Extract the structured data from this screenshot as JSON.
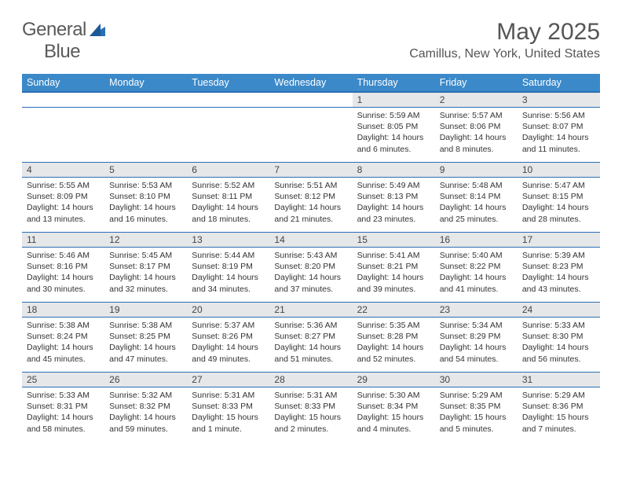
{
  "brand": {
    "part1": "General",
    "part2": "Blue"
  },
  "title": "May 2025",
  "location": "Camillus, New York, United States",
  "colors": {
    "header_bg": "#3b89c9",
    "header_border": "#2a6fb5",
    "daynum_bg": "#e6e7e8",
    "text": "#333",
    "title_text": "#555"
  },
  "weekdays": [
    "Sunday",
    "Monday",
    "Tuesday",
    "Wednesday",
    "Thursday",
    "Friday",
    "Saturday"
  ],
  "weeks": [
    [
      null,
      null,
      null,
      null,
      {
        "n": "1",
        "sr": "Sunrise: 5:59 AM",
        "ss": "Sunset: 8:05 PM",
        "d1": "Daylight: 14 hours",
        "d2": "and 6 minutes."
      },
      {
        "n": "2",
        "sr": "Sunrise: 5:57 AM",
        "ss": "Sunset: 8:06 PM",
        "d1": "Daylight: 14 hours",
        "d2": "and 8 minutes."
      },
      {
        "n": "3",
        "sr": "Sunrise: 5:56 AM",
        "ss": "Sunset: 8:07 PM",
        "d1": "Daylight: 14 hours",
        "d2": "and 11 minutes."
      }
    ],
    [
      {
        "n": "4",
        "sr": "Sunrise: 5:55 AM",
        "ss": "Sunset: 8:09 PM",
        "d1": "Daylight: 14 hours",
        "d2": "and 13 minutes."
      },
      {
        "n": "5",
        "sr": "Sunrise: 5:53 AM",
        "ss": "Sunset: 8:10 PM",
        "d1": "Daylight: 14 hours",
        "d2": "and 16 minutes."
      },
      {
        "n": "6",
        "sr": "Sunrise: 5:52 AM",
        "ss": "Sunset: 8:11 PM",
        "d1": "Daylight: 14 hours",
        "d2": "and 18 minutes."
      },
      {
        "n": "7",
        "sr": "Sunrise: 5:51 AM",
        "ss": "Sunset: 8:12 PM",
        "d1": "Daylight: 14 hours",
        "d2": "and 21 minutes."
      },
      {
        "n": "8",
        "sr": "Sunrise: 5:49 AM",
        "ss": "Sunset: 8:13 PM",
        "d1": "Daylight: 14 hours",
        "d2": "and 23 minutes."
      },
      {
        "n": "9",
        "sr": "Sunrise: 5:48 AM",
        "ss": "Sunset: 8:14 PM",
        "d1": "Daylight: 14 hours",
        "d2": "and 25 minutes."
      },
      {
        "n": "10",
        "sr": "Sunrise: 5:47 AM",
        "ss": "Sunset: 8:15 PM",
        "d1": "Daylight: 14 hours",
        "d2": "and 28 minutes."
      }
    ],
    [
      {
        "n": "11",
        "sr": "Sunrise: 5:46 AM",
        "ss": "Sunset: 8:16 PM",
        "d1": "Daylight: 14 hours",
        "d2": "and 30 minutes."
      },
      {
        "n": "12",
        "sr": "Sunrise: 5:45 AM",
        "ss": "Sunset: 8:17 PM",
        "d1": "Daylight: 14 hours",
        "d2": "and 32 minutes."
      },
      {
        "n": "13",
        "sr": "Sunrise: 5:44 AM",
        "ss": "Sunset: 8:19 PM",
        "d1": "Daylight: 14 hours",
        "d2": "and 34 minutes."
      },
      {
        "n": "14",
        "sr": "Sunrise: 5:43 AM",
        "ss": "Sunset: 8:20 PM",
        "d1": "Daylight: 14 hours",
        "d2": "and 37 minutes."
      },
      {
        "n": "15",
        "sr": "Sunrise: 5:41 AM",
        "ss": "Sunset: 8:21 PM",
        "d1": "Daylight: 14 hours",
        "d2": "and 39 minutes."
      },
      {
        "n": "16",
        "sr": "Sunrise: 5:40 AM",
        "ss": "Sunset: 8:22 PM",
        "d1": "Daylight: 14 hours",
        "d2": "and 41 minutes."
      },
      {
        "n": "17",
        "sr": "Sunrise: 5:39 AM",
        "ss": "Sunset: 8:23 PM",
        "d1": "Daylight: 14 hours",
        "d2": "and 43 minutes."
      }
    ],
    [
      {
        "n": "18",
        "sr": "Sunrise: 5:38 AM",
        "ss": "Sunset: 8:24 PM",
        "d1": "Daylight: 14 hours",
        "d2": "and 45 minutes."
      },
      {
        "n": "19",
        "sr": "Sunrise: 5:38 AM",
        "ss": "Sunset: 8:25 PM",
        "d1": "Daylight: 14 hours",
        "d2": "and 47 minutes."
      },
      {
        "n": "20",
        "sr": "Sunrise: 5:37 AM",
        "ss": "Sunset: 8:26 PM",
        "d1": "Daylight: 14 hours",
        "d2": "and 49 minutes."
      },
      {
        "n": "21",
        "sr": "Sunrise: 5:36 AM",
        "ss": "Sunset: 8:27 PM",
        "d1": "Daylight: 14 hours",
        "d2": "and 51 minutes."
      },
      {
        "n": "22",
        "sr": "Sunrise: 5:35 AM",
        "ss": "Sunset: 8:28 PM",
        "d1": "Daylight: 14 hours",
        "d2": "and 52 minutes."
      },
      {
        "n": "23",
        "sr": "Sunrise: 5:34 AM",
        "ss": "Sunset: 8:29 PM",
        "d1": "Daylight: 14 hours",
        "d2": "and 54 minutes."
      },
      {
        "n": "24",
        "sr": "Sunrise: 5:33 AM",
        "ss": "Sunset: 8:30 PM",
        "d1": "Daylight: 14 hours",
        "d2": "and 56 minutes."
      }
    ],
    [
      {
        "n": "25",
        "sr": "Sunrise: 5:33 AM",
        "ss": "Sunset: 8:31 PM",
        "d1": "Daylight: 14 hours",
        "d2": "and 58 minutes."
      },
      {
        "n": "26",
        "sr": "Sunrise: 5:32 AM",
        "ss": "Sunset: 8:32 PM",
        "d1": "Daylight: 14 hours",
        "d2": "and 59 minutes."
      },
      {
        "n": "27",
        "sr": "Sunrise: 5:31 AM",
        "ss": "Sunset: 8:33 PM",
        "d1": "Daylight: 15 hours",
        "d2": "and 1 minute."
      },
      {
        "n": "28",
        "sr": "Sunrise: 5:31 AM",
        "ss": "Sunset: 8:33 PM",
        "d1": "Daylight: 15 hours",
        "d2": "and 2 minutes."
      },
      {
        "n": "29",
        "sr": "Sunrise: 5:30 AM",
        "ss": "Sunset: 8:34 PM",
        "d1": "Daylight: 15 hours",
        "d2": "and 4 minutes."
      },
      {
        "n": "30",
        "sr": "Sunrise: 5:29 AM",
        "ss": "Sunset: 8:35 PM",
        "d1": "Daylight: 15 hours",
        "d2": "and 5 minutes."
      },
      {
        "n": "31",
        "sr": "Sunrise: 5:29 AM",
        "ss": "Sunset: 8:36 PM",
        "d1": "Daylight: 15 hours",
        "d2": "and 7 minutes."
      }
    ]
  ]
}
